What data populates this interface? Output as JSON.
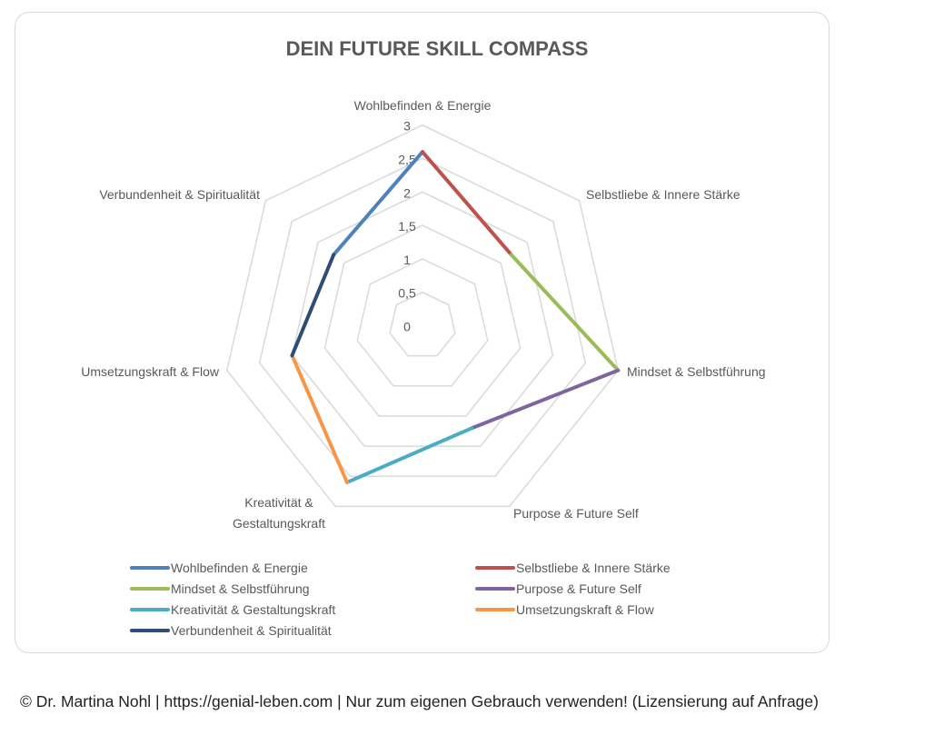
{
  "chart_data": {
    "type": "radar",
    "title": "DEIN FUTURE SKILL COMPASS",
    "categories": [
      "Wohlbefinden & Energie",
      "Selbstliebe & Innere Stärke",
      "Mindset & Selbstführung",
      "Purpose & Future Self",
      "Kreativität & Gestaltungskraft",
      "Umsetzungskraft & Flow",
      "Verbundenheit & Spiritualität"
    ],
    "category_label_lines": [
      [
        "Wohlbefinden & Energie"
      ],
      [
        "Selbstliebe & Innere Stärke"
      ],
      [
        "Mindset & Selbstführung"
      ],
      [
        "Purpose & Future Self"
      ],
      [
        "Kreativität &",
        "Gestaltungskraft"
      ],
      [
        "Umsetzungskraft & Flow"
      ],
      [
        "Verbundenheit & Spiritualität"
      ]
    ],
    "values": [
      2.6,
      1.7,
      3,
      1.7,
      2.6,
      2,
      1.7
    ],
    "rlim": [
      0,
      3
    ],
    "ticks": [
      "0",
      "0,5",
      "1",
      "1,5",
      "2",
      "2,5",
      "3"
    ],
    "tick_values": [
      0,
      0.5,
      1,
      1.5,
      2,
      2.5,
      3
    ],
    "grid": true,
    "legend_position": "bottom",
    "series": [
      {
        "name": "Wohlbefinden & Energie",
        "color": "#4F81BD"
      },
      {
        "name": "Selbstliebe & Innere Stärke",
        "color": "#C0504D"
      },
      {
        "name": "Mindset & Selbstführung",
        "color": "#9BBB59"
      },
      {
        "name": "Purpose & Future Self",
        "color": "#8064A2"
      },
      {
        "name": "Kreativität & Gestaltungskraft",
        "color": "#4BACC6"
      },
      {
        "name": "Umsetzungskraft & Flow",
        "color": "#F79646"
      },
      {
        "name": "Verbundenheit & Spiritualität",
        "color": "#2C4D75"
      }
    ]
  },
  "footer": "© Dr. Martina Nohl | https://genial-leben.com | Nur zum eigenen Gebrauch verwenden! (Lizensierung auf Anfrage)"
}
